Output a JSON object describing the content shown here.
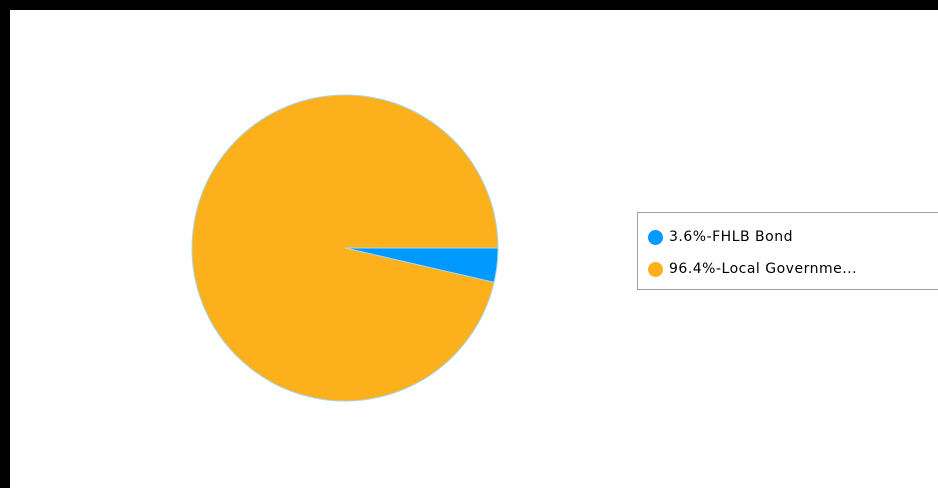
{
  "chart_data": {
    "type": "pie",
    "slices": [
      {
        "label": "3.6%-FHLB Bond",
        "value": 3.6,
        "color": "#0099ff"
      },
      {
        "label": "96.4%-Local Governme...",
        "value": 96.4,
        "color": "#fbb01c"
      }
    ],
    "slice_border_color": "#a8d8f0",
    "legend_position": "right"
  }
}
